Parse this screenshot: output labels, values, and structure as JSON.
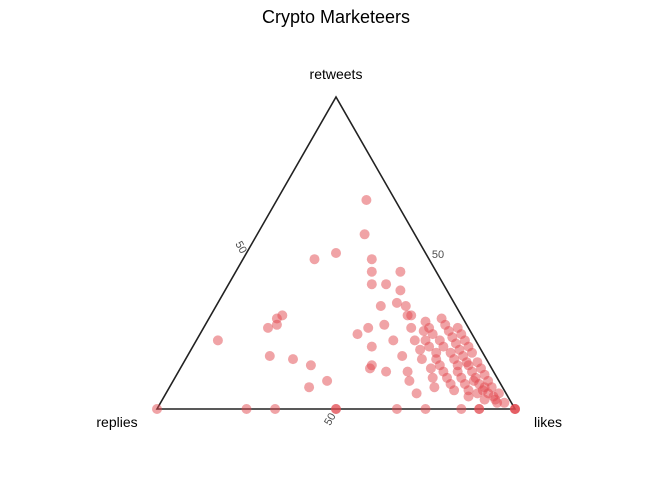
{
  "chart_data": {
    "type": "scatter",
    "subtype": "ternary",
    "title": "Crypto Marketeers",
    "axes": {
      "top": "retweets",
      "left": "replies",
      "right": "likes"
    },
    "ticks": [
      {
        "axis": "retweets",
        "label": "50"
      },
      {
        "axis": "replies",
        "label": "50"
      },
      {
        "axis": "likes",
        "label": "50"
      }
    ],
    "grid": false,
    "legend": "none",
    "marker_color": "#E2474E",
    "marker_opacity": 0.5,
    "value_fields": [
      "retweets",
      "likes",
      "replies"
    ],
    "points": [
      [
        0.0,
        1.0,
        0.0
      ],
      [
        0.0,
        1.0,
        0.0
      ],
      [
        0.0,
        1.0,
        0.0
      ],
      [
        0.0,
        0.9,
        0.1
      ],
      [
        0.0,
        0.9,
        0.1
      ],
      [
        0.0,
        0.85,
        0.15
      ],
      [
        0.0,
        0.75,
        0.25
      ],
      [
        0.0,
        0.67,
        0.33
      ],
      [
        0.0,
        0.5,
        0.5
      ],
      [
        0.0,
        0.5,
        0.5
      ],
      [
        0.0,
        0.33,
        0.67
      ],
      [
        0.0,
        0.25,
        0.75
      ],
      [
        0.0,
        0.0,
        1.0
      ],
      [
        0.02,
        0.96,
        0.02
      ],
      [
        0.02,
        0.94,
        0.04
      ],
      [
        0.03,
        0.93,
        0.04
      ],
      [
        0.04,
        0.92,
        0.04
      ],
      [
        0.05,
        0.9,
        0.05
      ],
      [
        0.06,
        0.88,
        0.06
      ],
      [
        0.07,
        0.88,
        0.05
      ],
      [
        0.08,
        0.86,
        0.06
      ],
      [
        0.09,
        0.84,
        0.07
      ],
      [
        0.1,
        0.84,
        0.06
      ],
      [
        0.12,
        0.82,
        0.06
      ],
      [
        0.14,
        0.8,
        0.06
      ],
      [
        0.15,
        0.79,
        0.06
      ],
      [
        0.17,
        0.77,
        0.06
      ],
      [
        0.19,
        0.75,
        0.06
      ],
      [
        0.21,
        0.73,
        0.06
      ],
      [
        0.23,
        0.71,
        0.06
      ],
      [
        0.25,
        0.69,
        0.06
      ],
      [
        0.27,
        0.67,
        0.06
      ],
      [
        0.29,
        0.65,
        0.06
      ],
      [
        0.05,
        0.93,
        0.02
      ],
      [
        0.07,
        0.9,
        0.03
      ],
      [
        0.09,
        0.88,
        0.03
      ],
      [
        0.11,
        0.86,
        0.03
      ],
      [
        0.13,
        0.84,
        0.03
      ],
      [
        0.15,
        0.82,
        0.03
      ],
      [
        0.18,
        0.79,
        0.03
      ],
      [
        0.2,
        0.77,
        0.03
      ],
      [
        0.22,
        0.75,
        0.03
      ],
      [
        0.24,
        0.73,
        0.03
      ],
      [
        0.26,
        0.71,
        0.03
      ],
      [
        0.03,
        0.9,
        0.07
      ],
      [
        0.05,
        0.87,
        0.08
      ],
      [
        0.06,
        0.84,
        0.1
      ],
      [
        0.08,
        0.82,
        0.1
      ],
      [
        0.1,
        0.8,
        0.1
      ],
      [
        0.12,
        0.78,
        0.1
      ],
      [
        0.14,
        0.77,
        0.09
      ],
      [
        0.16,
        0.75,
        0.09
      ],
      [
        0.18,
        0.73,
        0.09
      ],
      [
        0.2,
        0.7,
        0.1
      ],
      [
        0.22,
        0.68,
        0.1
      ],
      [
        0.24,
        0.65,
        0.11
      ],
      [
        0.26,
        0.63,
        0.11
      ],
      [
        0.28,
        0.61,
        0.11
      ],
      [
        0.04,
        0.85,
        0.11
      ],
      [
        0.06,
        0.8,
        0.14
      ],
      [
        0.08,
        0.78,
        0.14
      ],
      [
        0.1,
        0.76,
        0.14
      ],
      [
        0.12,
        0.74,
        0.14
      ],
      [
        0.14,
        0.72,
        0.14
      ],
      [
        0.16,
        0.7,
        0.14
      ],
      [
        0.18,
        0.69,
        0.13
      ],
      [
        0.2,
        0.66,
        0.14
      ],
      [
        0.22,
        0.64,
        0.14
      ],
      [
        0.25,
        0.62,
        0.13
      ],
      [
        0.3,
        0.56,
        0.14
      ],
      [
        0.33,
        0.53,
        0.14
      ],
      [
        0.07,
        0.74,
        0.19
      ],
      [
        0.1,
        0.72,
        0.18
      ],
      [
        0.13,
        0.7,
        0.17
      ],
      [
        0.16,
        0.66,
        0.18
      ],
      [
        0.19,
        0.64,
        0.17
      ],
      [
        0.22,
        0.61,
        0.17
      ],
      [
        0.26,
        0.58,
        0.16
      ],
      [
        0.3,
        0.55,
        0.15
      ],
      [
        0.34,
        0.5,
        0.16
      ],
      [
        0.38,
        0.49,
        0.13
      ],
      [
        0.4,
        0.44,
        0.16
      ],
      [
        0.05,
        0.7,
        0.25
      ],
      [
        0.09,
        0.66,
        0.25
      ],
      [
        0.12,
        0.64,
        0.24
      ],
      [
        0.17,
        0.6,
        0.23
      ],
      [
        0.22,
        0.55,
        0.23
      ],
      [
        0.27,
        0.5,
        0.23
      ],
      [
        0.33,
        0.46,
        0.21
      ],
      [
        0.4,
        0.4,
        0.2
      ],
      [
        0.44,
        0.38,
        0.18
      ],
      [
        0.48,
        0.36,
        0.16
      ],
      [
        0.56,
        0.3,
        0.14
      ],
      [
        0.67,
        0.25,
        0.08
      ],
      [
        0.12,
        0.58,
        0.3
      ],
      [
        0.14,
        0.53,
        0.33
      ],
      [
        0.2,
        0.5,
        0.3
      ],
      [
        0.24,
        0.44,
        0.32
      ],
      [
        0.26,
        0.46,
        0.28
      ],
      [
        0.14,
        0.36,
        0.5
      ],
      [
        0.3,
        0.2,
        0.5
      ],
      [
        0.29,
        0.19,
        0.52
      ],
      [
        0.27,
        0.2,
        0.53
      ],
      [
        0.26,
        0.18,
        0.56
      ],
      [
        0.22,
        0.06,
        0.72
      ],
      [
        0.16,
        0.3,
        0.54
      ],
      [
        0.17,
        0.23,
        0.6
      ],
      [
        0.07,
        0.39,
        0.54
      ],
      [
        0.48,
        0.2,
        0.32
      ],
      [
        0.44,
        0.46,
        0.1
      ],
      [
        0.5,
        0.25,
        0.25
      ],
      [
        0.13,
        0.53,
        0.34
      ],
      [
        0.09,
        0.43,
        0.48
      ]
    ]
  }
}
